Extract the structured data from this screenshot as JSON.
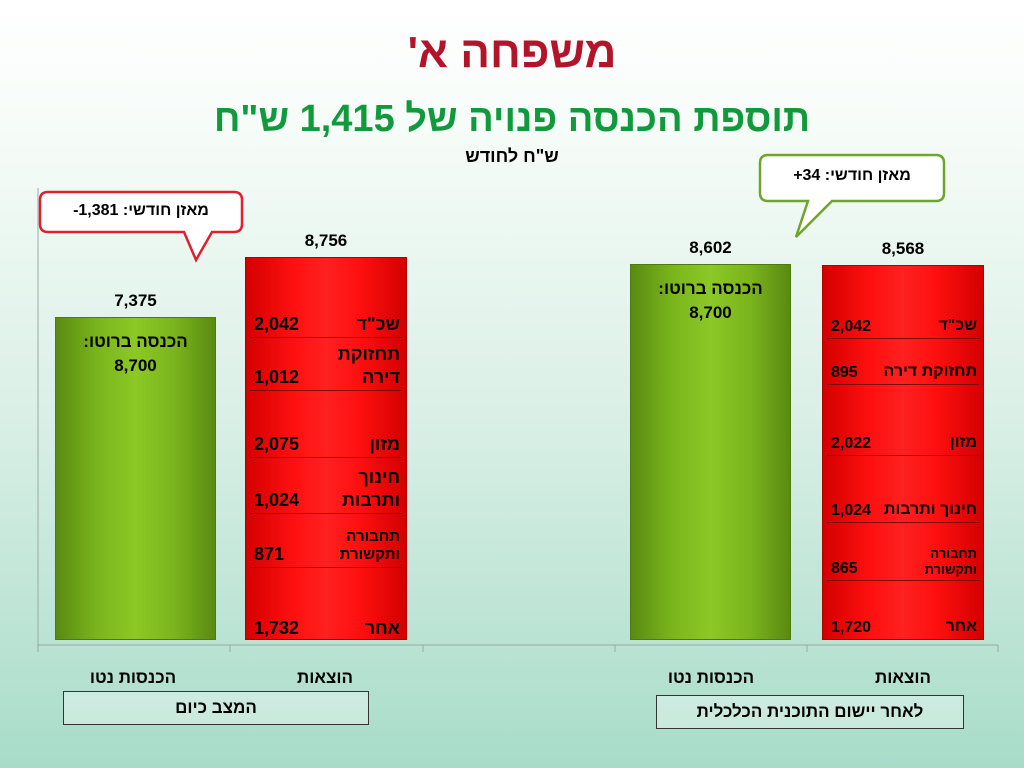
{
  "title": "משפחה א'",
  "subtitle": "תוספת הכנסה פנויה של 1,415 ש\"ח",
  "unit_label": "ש\"ח לחודש",
  "callouts": {
    "left": "מאזן חודשי: 1,381-",
    "right": "מאזן חודשי: 34+"
  },
  "colors": {
    "title": "#b3142a",
    "subtitle": "#119a3c",
    "income_bar": "#79b41c",
    "expense_bar": "#ff1010",
    "callout_left_border": "#e0202e",
    "callout_right_border": "#6ea52a"
  },
  "chart_data": {
    "type": "bar",
    "stacked": true,
    "categories": [
      "הכנסות נטו",
      "הוצאות",
      "הכנסות נטו",
      "הוצאות"
    ],
    "groups": [
      "המצב כיום",
      "לאחר יישום התוכנית הכלכלית"
    ],
    "ylim": [
      0,
      10000
    ],
    "grid": false,
    "bars": [
      {
        "category": "הכנסות נטו",
        "group": "המצב כיום",
        "total": 7375,
        "total_label": "7,375",
        "gross_label": "הכנסה ברוטו:",
        "gross_value": "8,700"
      },
      {
        "category": "הוצאות",
        "group": "המצב כיום",
        "total": 8756,
        "total_label": "8,756",
        "segments": [
          {
            "name": "שכ\"ד",
            "value": 2042,
            "value_label": "2,042"
          },
          {
            "name": "תחזוקת דירה",
            "value": 1012,
            "value_label": "1,012"
          },
          {
            "name": "מזון",
            "value": 2075,
            "value_label": "2,075"
          },
          {
            "name": "חינוך ותרבות",
            "value": 1024,
            "value_label": "1,024"
          },
          {
            "name": "תחבורה ותקשורת",
            "value": 871,
            "value_label": "871"
          },
          {
            "name": "אחר",
            "value": 1732,
            "value_label": "1,732"
          }
        ]
      },
      {
        "category": "הכנסות נטו",
        "group": "לאחר יישום התוכנית הכלכלית",
        "total": 8602,
        "total_label": "8,602",
        "gross_label": "הכנסה ברוטו:",
        "gross_value": "8,700"
      },
      {
        "category": "הוצאות",
        "group": "לאחר יישום התוכנית הכלכלית",
        "total": 8568,
        "total_label": "8,568",
        "segments": [
          {
            "name": "שכ\"ד",
            "value": 2042,
            "value_label": "2,042"
          },
          {
            "name": "תחזוקת דירה",
            "value": 895,
            "value_label": "895"
          },
          {
            "name": "מזון",
            "value": 2022,
            "value_label": "2,022"
          },
          {
            "name": "חינוך ותרבות",
            "value": 1024,
            "value_label": "1,024"
          },
          {
            "name": "תחבורה ותקשורת",
            "value": 865,
            "value_label": "865"
          },
          {
            "name": "אחר",
            "value": 1720,
            "value_label": "1,720"
          }
        ]
      }
    ]
  }
}
